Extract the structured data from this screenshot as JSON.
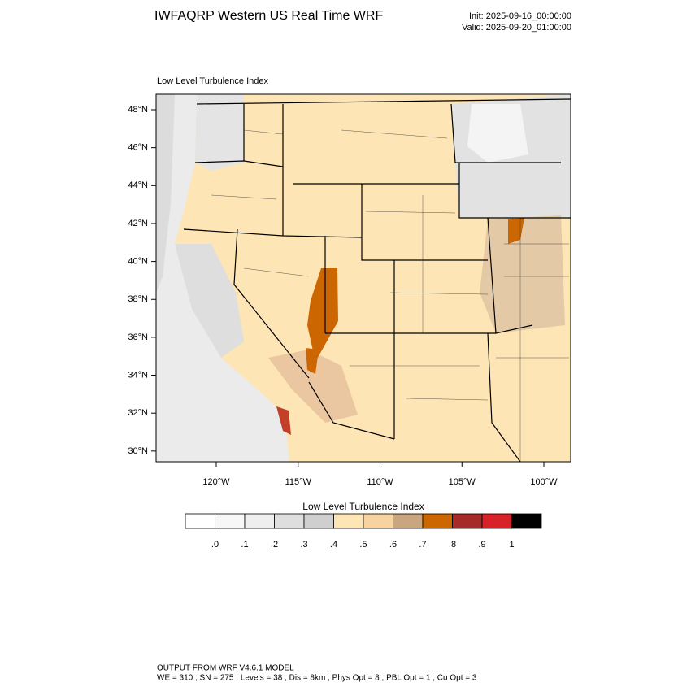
{
  "header": {
    "title": "IWFAQRP Western US Real Time WRF",
    "init": "Init: 2025-09-16_00:00:00",
    "valid": "Valid: 2025-09-20_01:00:00"
  },
  "map": {
    "subtitle": "Low Level Turbulence Index",
    "lat_labels": [
      "48°N",
      "46°N",
      "44°N",
      "42°N",
      "40°N",
      "38°N",
      "36°N",
      "34°N",
      "32°N",
      "30°N"
    ],
    "lon_labels": [
      "120°W",
      "115°W",
      "110°W",
      "105°W",
      "100°W"
    ]
  },
  "colorbar": {
    "title": "Low Level Turbulence Index",
    "colors": [
      "#ffffff",
      "#f7f7f7",
      "#eeeeee",
      "#dedede",
      "#cfcfcf",
      "#fde5b5",
      "#f6d3a1",
      "#c9a67f",
      "#cc6600",
      "#a62a2a",
      "#d62228",
      "#000000"
    ],
    "labels": [
      ".0",
      ".1",
      ".2",
      ".3",
      ".4",
      ".5",
      ".6",
      ".7",
      ".8",
      ".9",
      "1"
    ]
  },
  "footer": {
    "line1": "OUTPUT FROM WRF V4.6.1 MODEL",
    "line2": "WE = 310 ; SN = 275 ; Levels = 38 ; Dis = 8km ; Phys Opt = 8 ; PBL Opt = 1 ; Cu Opt = 3"
  }
}
